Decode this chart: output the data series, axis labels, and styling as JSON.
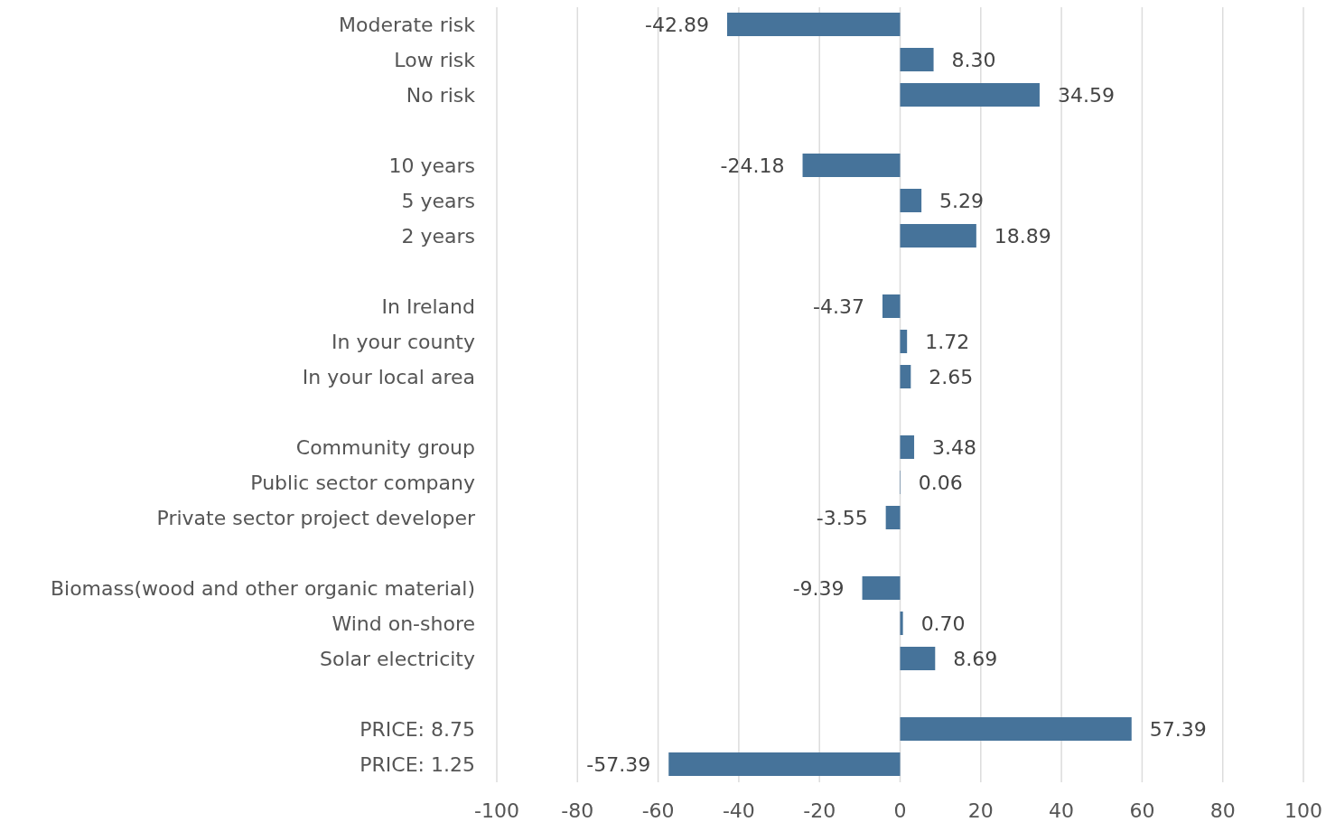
{
  "chart_data": {
    "type": "bar",
    "orientation": "horizontal",
    "categories": [
      "Moderate risk",
      "Low risk",
      "No risk",
      null,
      "10 years",
      "5 years",
      "2 years",
      null,
      "In Ireland",
      "In your county",
      "In your local area",
      null,
      "Community group",
      "Public sector company",
      "Private sector project developer",
      null,
      "Biomass(wood and other organic material)",
      "Wind on-shore",
      "Solar electricity",
      null,
      "PRICE: 8.75",
      "PRICE: 1.25"
    ],
    "values": [
      -42.89,
      8.3,
      34.59,
      null,
      -24.18,
      5.29,
      18.89,
      null,
      -4.37,
      1.72,
      2.65,
      null,
      3.48,
      0.06,
      -3.55,
      null,
      -9.39,
      0.7,
      8.69,
      null,
      57.39,
      -57.39
    ],
    "value_labels": [
      "-42.89",
      "8.30",
      "34.59",
      null,
      "-24.18",
      "5.29",
      "18.89",
      null,
      "-4.37",
      "1.72",
      "2.65",
      null,
      "3.48",
      "0.06",
      "-3.55",
      null,
      "-9.39",
      "0.70",
      "8.69",
      null,
      "57.39",
      "-57.39"
    ],
    "color": "#46739a",
    "xlim": [
      -100,
      100
    ],
    "xticks": [
      -100,
      -80,
      -60,
      -40,
      -20,
      0,
      20,
      40,
      60,
      80,
      100
    ],
    "grid": "x"
  }
}
